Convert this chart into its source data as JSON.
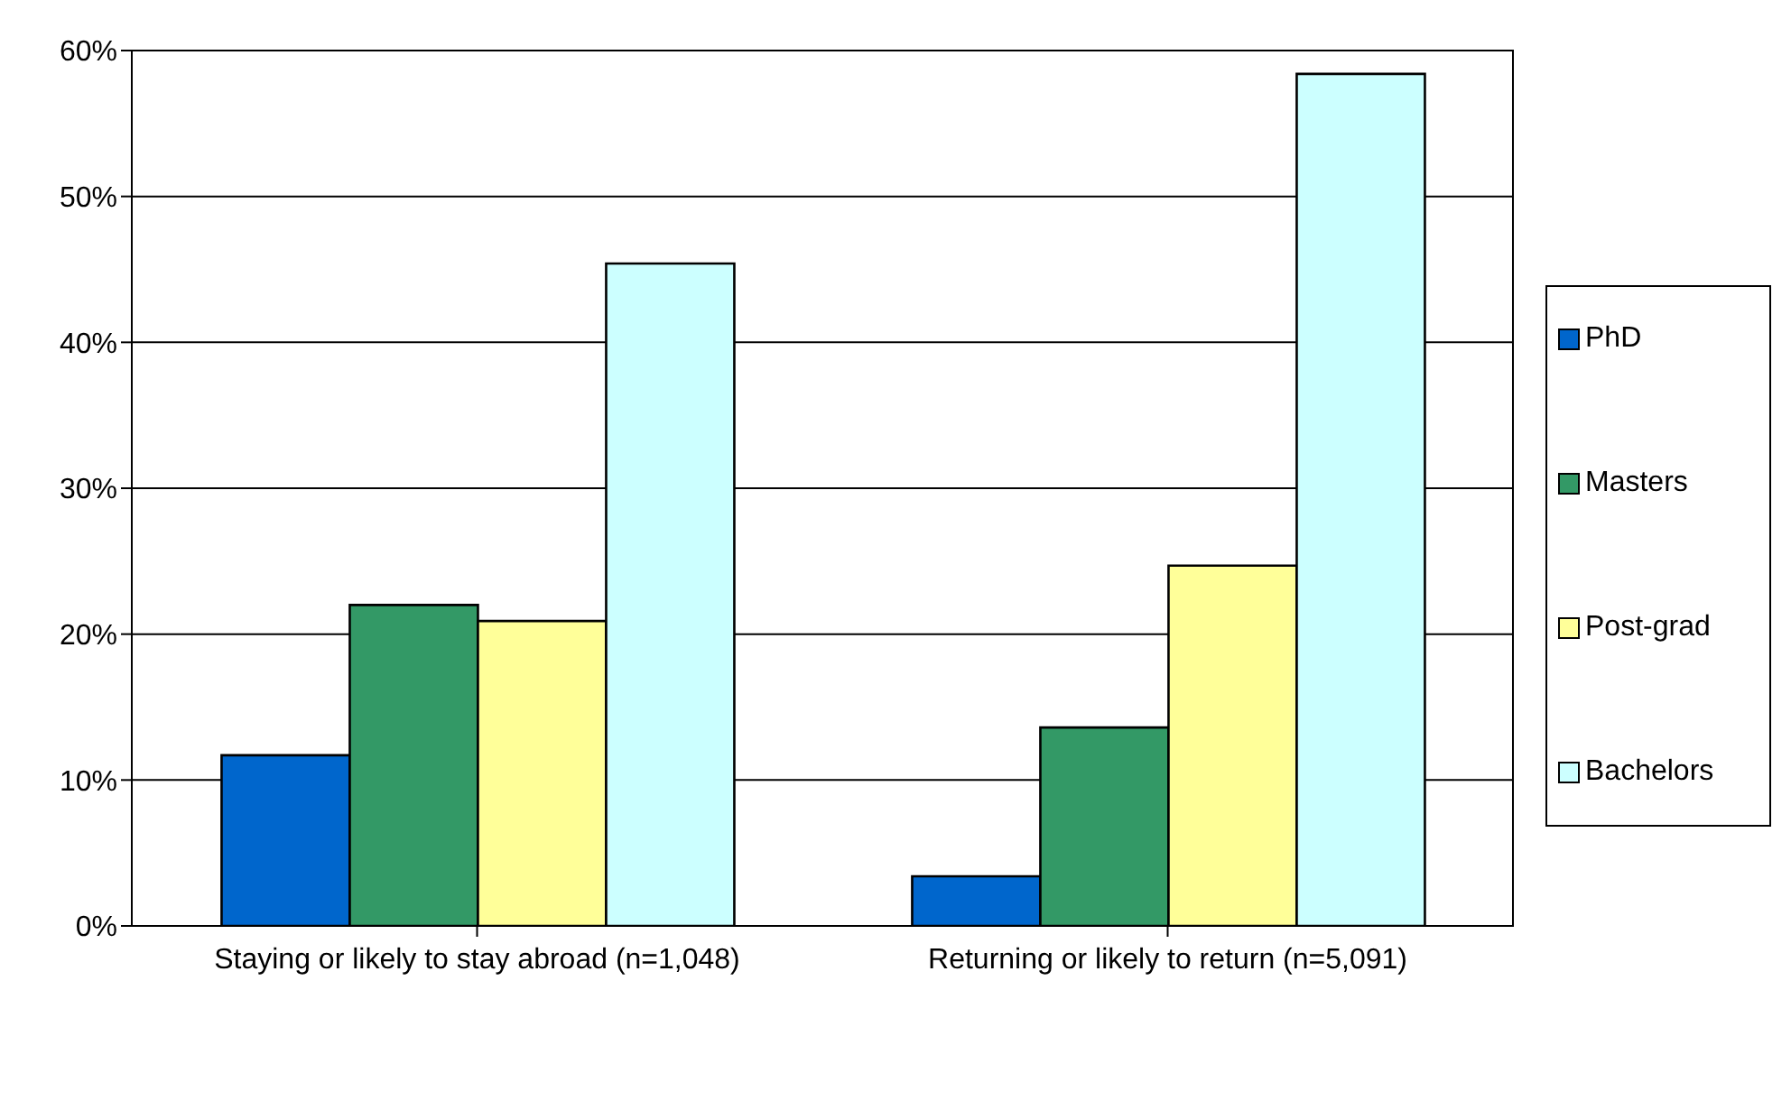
{
  "chart_data": {
    "type": "bar",
    "categories": [
      "Staying or likely to stay abroad (n=1,048)",
      "Returning or likely to return (n=5,091)"
    ],
    "series": [
      {
        "name": "PhD",
        "color": "#0066cc",
        "values": [
          11.7,
          3.4
        ]
      },
      {
        "name": "Masters",
        "color": "#339966",
        "values": [
          22.0,
          13.6
        ]
      },
      {
        "name": "Post-grad",
        "color": "#ffff99",
        "values": [
          20.9,
          24.7
        ]
      },
      {
        "name": "Bachelors",
        "color": "#ccffff",
        "values": [
          45.4,
          58.4
        ]
      }
    ],
    "ylim": [
      0,
      60
    ],
    "yticks": [
      {
        "value": 0,
        "label": "0%"
      },
      {
        "value": 10,
        "label": "10%"
      },
      {
        "value": 20,
        "label": "20%"
      },
      {
        "value": 30,
        "label": "30%"
      },
      {
        "value": 40,
        "label": "40%"
      },
      {
        "value": 50,
        "label": "50%"
      },
      {
        "value": 60,
        "label": "60%"
      }
    ],
    "grid": "y",
    "legend": "right"
  }
}
